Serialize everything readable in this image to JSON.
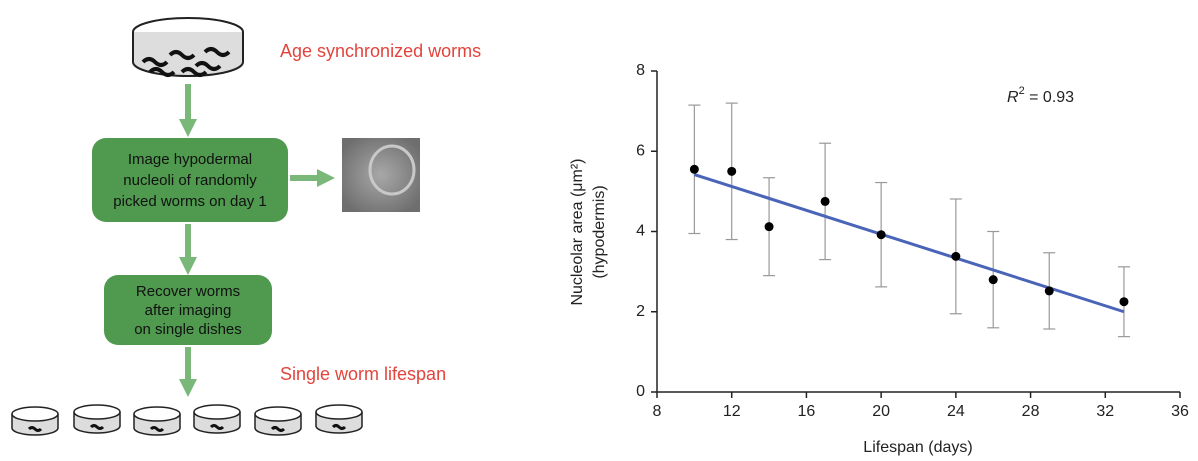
{
  "diagram": {
    "step1": "Age synchronized worms",
    "box1": [
      "Image hypodermal",
      "nucleoli of randomly",
      "picked worms on day 1"
    ],
    "box2": [
      "Recover worms",
      "after imaging",
      "on single dishes"
    ],
    "step2": "Single worm lifespan"
  },
  "chart_data": {
    "type": "scatter",
    "xlabel": "Lifespan (days)",
    "ylabel": [
      "Nucleolar area (μm²)",
      "(hypodermis)"
    ],
    "annotation": {
      "variable": "R",
      "superscript": "2",
      "text": " = 0.93"
    },
    "x": [
      10,
      12,
      14,
      17,
      20,
      24,
      26,
      29,
      33
    ],
    "values": [
      5.55,
      5.5,
      4.12,
      4.75,
      3.92,
      3.38,
      2.8,
      2.52,
      2.25
    ],
    "errors": [
      1.6,
      1.7,
      1.22,
      1.45,
      1.3,
      1.43,
      1.2,
      0.95,
      0.87
    ],
    "color": "#000000",
    "fit": {
      "x": [
        10,
        33
      ],
      "values": [
        5.42,
        2.0
      ],
      "color": "#4a64b8"
    },
    "xlim": [
      8,
      36
    ],
    "xticks": [
      8,
      12,
      16,
      20,
      24,
      28,
      32,
      36
    ],
    "ylim": [
      0,
      8
    ],
    "yticks": [
      0,
      2,
      4,
      6,
      8
    ],
    "grid": false
  }
}
